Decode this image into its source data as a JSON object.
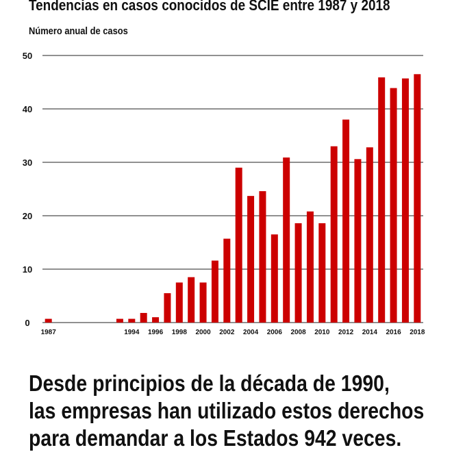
{
  "title": "Tendencias en casos conocidos de SCIE entre 1987 y 2018",
  "caption": {
    "line1": "Desde principios de la década de 1990,",
    "line2": "las empresas han utilizado estos derechos",
    "line3": "para demandar a los Estados 942 veces."
  },
  "colors": {
    "bar": "#cc0000",
    "grid": "#222222",
    "text": "#111111"
  },
  "chart_data": {
    "type": "bar",
    "title": "Tendencias en casos conocidos de SCIE entre 1987 y 2018",
    "xlabel": "",
    "ylabel": "Número anual de casos",
    "ylim": [
      0,
      50
    ],
    "yticks": [
      0,
      10,
      20,
      30,
      40,
      50
    ],
    "grid": true,
    "x_tick_labels": [
      "1987",
      "1994",
      "1996",
      "1998",
      "2000",
      "2002",
      "2004",
      "2006",
      "2008",
      "2010",
      "2012",
      "2014",
      "2016",
      "2018"
    ],
    "categories": [
      1987,
      1988,
      1989,
      1990,
      1991,
      1992,
      1993,
      1994,
      1995,
      1996,
      1997,
      1998,
      1999,
      2000,
      2001,
      2002,
      2003,
      2004,
      2005,
      2006,
      2007,
      2008,
      2009,
      2010,
      2011,
      2012,
      2013,
      2014,
      2015,
      2016,
      2017,
      2018
    ],
    "values": [
      0.7,
      0,
      0,
      0,
      0,
      0,
      0.7,
      0.7,
      1.8,
      1,
      5.5,
      7.5,
      8.5,
      7.5,
      11.6,
      15.7,
      29,
      23.7,
      24.6,
      16.5,
      30.9,
      18.6,
      20.8,
      18.6,
      33,
      38,
      30.6,
      32.8,
      45.9,
      43.9,
      45.7,
      46.5
    ]
  }
}
